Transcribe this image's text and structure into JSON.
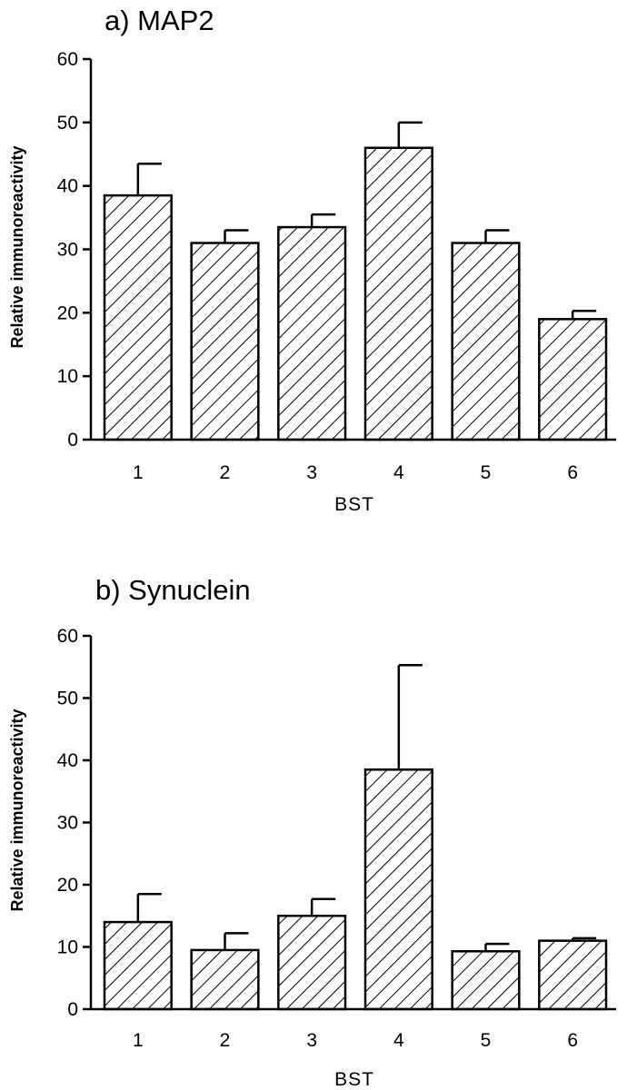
{
  "chart_data": [
    {
      "type": "bar",
      "title": "a) MAP2",
      "xlabel": "BST",
      "ylabel": "Relative immunoreactivity",
      "categories": [
        "1",
        "2",
        "3",
        "4",
        "5",
        "6"
      ],
      "values": [
        38.5,
        31,
        33.5,
        46,
        31,
        19
      ],
      "error_upper": [
        5,
        2,
        2,
        4,
        2,
        1.3
      ],
      "ylim": [
        0,
        60
      ],
      "yticks": [
        "0",
        "10",
        "20",
        "30",
        "40",
        "50",
        "60"
      ],
      "bar_fill": "diagonal hatch",
      "grid": false
    },
    {
      "type": "bar",
      "title": "b) Synuclein",
      "xlabel": "BST",
      "ylabel": "Relative immunoreactivity",
      "categories": [
        "1",
        "2",
        "3",
        "4",
        "5",
        "6"
      ],
      "values": [
        14,
        9.5,
        15,
        38.5,
        9.3,
        11
      ],
      "error_upper": [
        4.5,
        2.7,
        2.7,
        16.8,
        1.2,
        0.4
      ],
      "ylim": [
        0,
        60
      ],
      "yticks": [
        "0",
        "10",
        "20",
        "30",
        "40",
        "50",
        "60"
      ],
      "bar_fill": "diagonal hatch",
      "grid": false
    }
  ]
}
